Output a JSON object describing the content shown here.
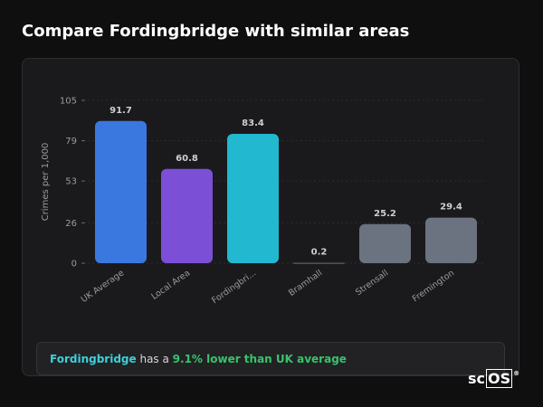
{
  "header": {
    "title": "Compare Fordingbridge with similar areas"
  },
  "chart_data": {
    "type": "bar",
    "ylabel": "Crimes per 1,000",
    "xlabel": "",
    "ylim": [
      0,
      105
    ],
    "yticks": [
      0,
      26,
      53,
      79,
      105
    ],
    "grid": true,
    "categories": [
      "UK Average",
      "Local Area",
      "Fordingbri...",
      "Bramhall",
      "Strensall",
      "Fremington"
    ],
    "values": [
      91.7,
      60.8,
      83.4,
      0.2,
      25.2,
      29.4
    ],
    "value_labels": [
      "91.7",
      "60.8",
      "83.4",
      "0.2",
      "25.2",
      "29.4"
    ],
    "colors": [
      "#3a78e0",
      "#7b4fd6",
      "#22b8d0",
      "#6b7280",
      "#6b7280",
      "#6b7280"
    ]
  },
  "summary": {
    "place": "Fordingbridge",
    "text_mid": " has a ",
    "difference": "9.1% lower than UK average"
  },
  "logo": {
    "text_plain": "sc",
    "text_boxed": "OS",
    "mark": "®"
  }
}
